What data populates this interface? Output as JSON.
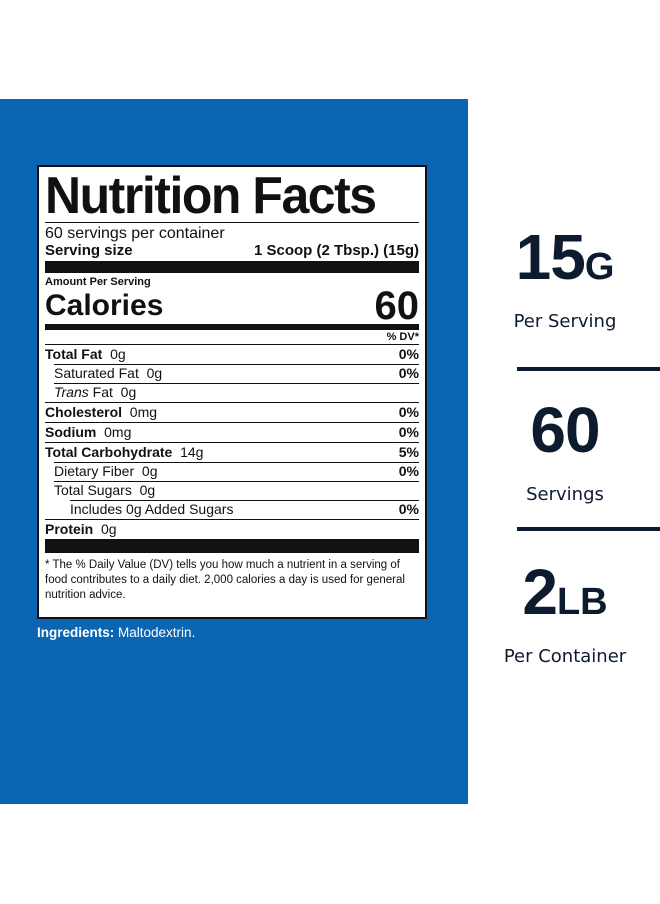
{
  "label": {
    "title": "Nutrition Facts",
    "servings_per_container": "60 servings per container",
    "serving_size_label": "Serving size",
    "serving_size_value": "1 Scoop (2 Tbsp.) (15g)",
    "amount_per_serving": "Amount Per Serving",
    "calories_label": "Calories",
    "calories_value": "60",
    "dv_header": "% DV*",
    "nutrients": [
      {
        "name": "Total Fat",
        "amount": "0g",
        "dv": "0%"
      },
      {
        "name": "Saturated Fat",
        "amount": "0g",
        "dv": "0%"
      },
      {
        "name": "Trans",
        "name_rest": "Fat",
        "amount": "0g",
        "dv": ""
      },
      {
        "name": "Cholesterol",
        "amount": "0mg",
        "dv": "0%"
      },
      {
        "name": "Sodium",
        "amount": "0mg",
        "dv": "0%"
      },
      {
        "name": "Total Carbohydrate",
        "amount": "14g",
        "dv": "5%"
      },
      {
        "name": "Dietary Fiber",
        "amount": "0g",
        "dv": "0%"
      },
      {
        "name": "Total Sugars",
        "amount": "0g",
        "dv": ""
      },
      {
        "name": "Includes 0g Added Sugars",
        "amount": "",
        "dv": "0%"
      },
      {
        "name": "Protein",
        "amount": "0g",
        "dv": ""
      }
    ],
    "footnote": "* The % Daily Value (DV) tells you how much a nutrient in a serving of food contributes to a daily diet. 2,000 calories a day is used for general nutrition advice."
  },
  "ingredients": {
    "label": "Ingredients:",
    "value": "Maltodextrin."
  },
  "stats": [
    {
      "value": "15",
      "unit": "G",
      "caption": "Per Serving"
    },
    {
      "value": "60",
      "unit": "",
      "caption": "Servings"
    },
    {
      "value": "2",
      "unit": "LB",
      "caption": "Per Container"
    }
  ],
  "colors": {
    "panel_blue": "#0a66b3",
    "stat_text": "#0d1b2e"
  }
}
